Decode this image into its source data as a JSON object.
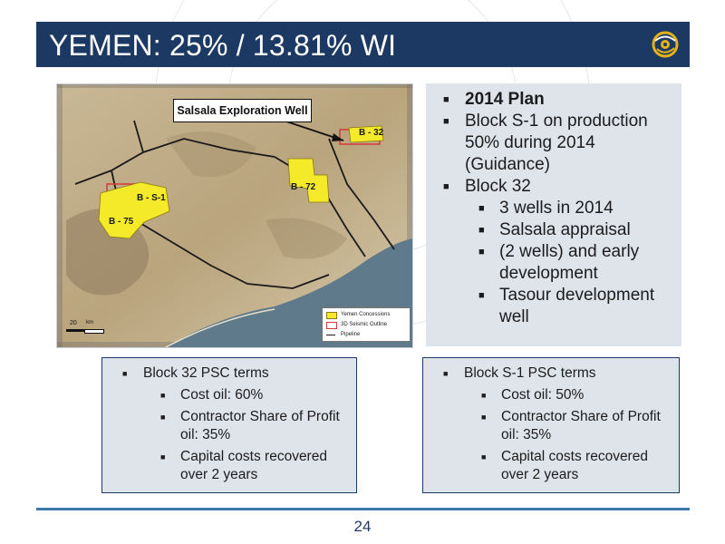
{
  "header": {
    "title": "YEMEN: 25% / 13.81% WI"
  },
  "map": {
    "callout": "Salsala Exploration Well",
    "blocks": {
      "b32": "B - 32",
      "b72": "B - 72",
      "bs1": "B - S-1",
      "b75": "B - 75"
    },
    "legend": [
      "Yemen Concessions",
      "3D Seismic Outline",
      "Pipeline"
    ],
    "scale": {
      "value": "20",
      "unit": "km"
    },
    "colors": {
      "concession": "#f4ea2a",
      "seismic": "#d43a3a",
      "pipeline": "#1a1a1a",
      "land": "#cdbfa3",
      "sea": "#5f7a8a"
    }
  },
  "plan": {
    "items": [
      {
        "level": 1,
        "bold": true,
        "text": "2014 Plan"
      },
      {
        "level": 1,
        "text": "Block S-1 on production 50% during  2014 (Guidance)"
      },
      {
        "level": 1,
        "text": "Block 32"
      },
      {
        "level": 2,
        "text": "3 wells in 2014"
      },
      {
        "level": 2,
        "text": "Salsala appraisal"
      },
      {
        "level": 2,
        "text": "(2 wells) and early development"
      },
      {
        "level": 2,
        "text": "Tasour development well"
      }
    ]
  },
  "terms_left": {
    "heading": "Block 32 PSC terms",
    "items": [
      "Cost oil: 60%",
      "Contractor Share of Profit oil: 35%",
      "Capital costs recovered over 2 years"
    ]
  },
  "terms_right": {
    "heading": "Block S-1 PSC terms",
    "items": [
      "Cost oil: 50%",
      "Contractor Share of Profit oil: 35%",
      "Capital costs recovered over 2 years"
    ]
  },
  "footer": {
    "page_number": "24"
  },
  "theme": {
    "header_bg": "#1c3964",
    "panel_bg": "#dfe3ea",
    "rule": "#3c78a8",
    "logo_gold": "#e3b21a"
  }
}
